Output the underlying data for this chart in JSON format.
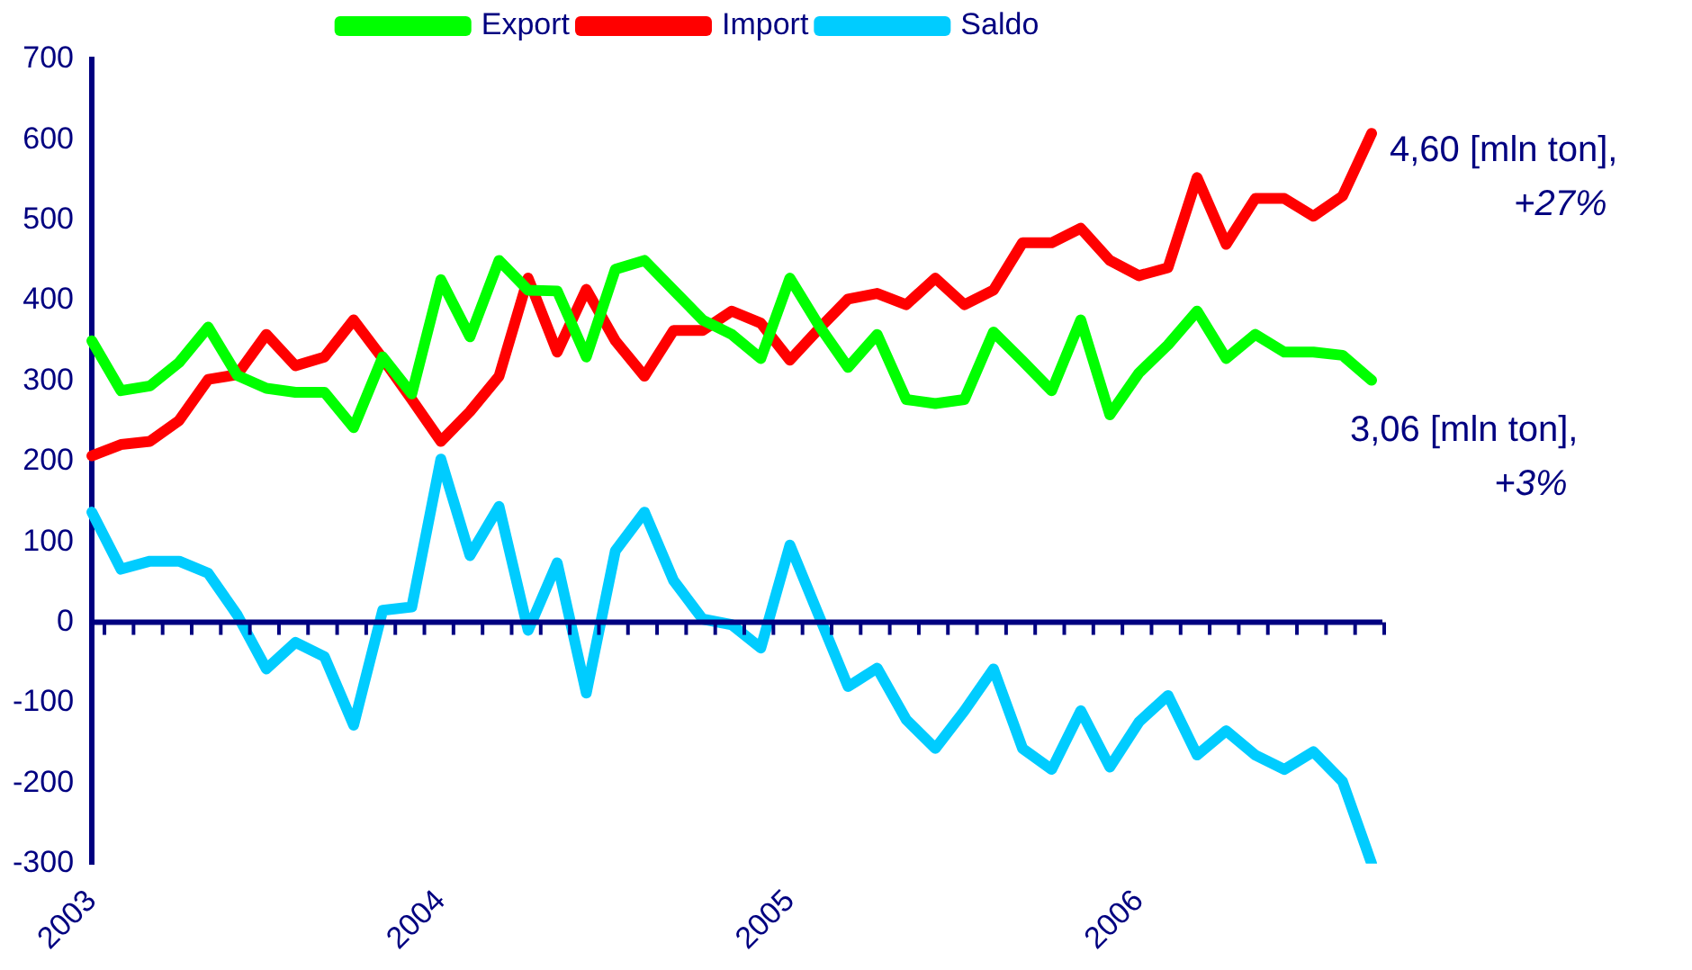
{
  "chart_data": {
    "type": "line",
    "marker": "none",
    "legend": "top",
    "categories": [
      "2003",
      null,
      null,
      null,
      null,
      null,
      null,
      null,
      null,
      null,
      null,
      null,
      "2004",
      null,
      null,
      null,
      null,
      null,
      null,
      null,
      null,
      null,
      null,
      null,
      "2005",
      null,
      null,
      null,
      null,
      null,
      null,
      null,
      null,
      null,
      null,
      null,
      "2006",
      null,
      null,
      null,
      null,
      null,
      null,
      null,
      null
    ],
    "series": [
      {
        "name": "Export",
        "color": "#00ff00",
        "values": [
          350,
          288,
          294,
          323,
          367,
          307,
          291,
          286,
          286,
          242,
          330,
          284,
          426,
          355,
          450,
          413,
          412,
          330,
          439,
          450,
          413,
          376,
          358,
          328,
          428,
          369,
          317,
          358,
          277,
          272,
          277,
          361,
          325,
          288,
          376,
          258,
          310,
          345,
          387,
          328,
          358,
          336,
          336,
          332,
          301
        ]
      },
      {
        "name": "Import",
        "color": "#ff0000",
        "values": [
          207,
          221,
          225,
          251,
          302,
          308,
          358,
          319,
          330,
          376,
          328,
          277,
          225,
          262,
          306,
          428,
          336,
          414,
          350,
          306,
          363,
          363,
          387,
          372,
          326,
          365,
          402,
          409,
          395,
          428,
          395,
          413,
          472,
          472,
          490,
          450,
          431,
          441,
          553,
          470,
          527,
          527,
          505,
          530,
          608
        ]
      },
      {
        "name": "Saldo",
        "color": "#00ccff",
        "values": [
          137,
          66,
          76,
          76,
          61,
          9,
          -58,
          -25,
          -43,
          -128,
          15,
          19,
          203,
          83,
          144,
          -10,
          74,
          -88,
          89,
          137,
          52,
          4,
          -3,
          -32,
          96,
          8,
          -80,
          -57,
          -121,
          -157,
          -110,
          -58,
          -157,
          -183,
          -110,
          -180,
          -124,
          -91,
          -165,
          -135,
          -165,
          -183,
          -161,
          -198,
          -300
        ]
      }
    ],
    "ylim": [
      -300,
      700
    ],
    "yticks": [
      -300,
      -200,
      -100,
      0,
      100,
      200,
      300,
      400,
      500,
      600,
      700
    ],
    "ref_lines": [
      {
        "axis": "y",
        "value": 0,
        "color": "#000080"
      }
    ],
    "annotations": [
      "4,60 [mln ton],",
      "+27%",
      "3,06 [mln ton],",
      "+3%"
    ]
  }
}
